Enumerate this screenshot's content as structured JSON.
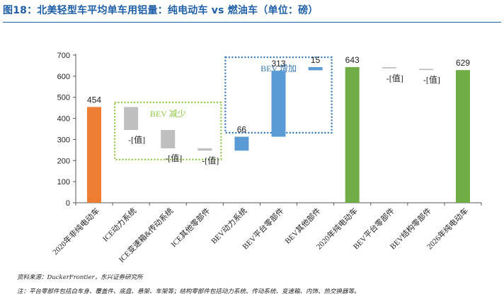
{
  "figure": {
    "title": "图18：北美轻型车平均单车用铝量：纯电动车 vs 燃油车（单位：磅）"
  },
  "chart_data": {
    "type": "bar",
    "subtype": "waterfall",
    "title": "",
    "xlabel": "",
    "ylabel": "",
    "ylim": [
      0,
      700
    ],
    "yticks": [
      0,
      100,
      200,
      300,
      400,
      500,
      600,
      700
    ],
    "grid": false,
    "legend": "none",
    "colors": {
      "total_orange": "#ed7d31",
      "total_green": "#70ad47",
      "decrease": "#bfbfbf",
      "increase": "#5b9bd5",
      "group_box": "#8dc63f",
      "group_box_blue": "#2e75b6"
    },
    "categories": [
      "2020年非纯电动车",
      "ICE动力系统",
      "ICE变速箱&传动系统",
      "ICE其他零部件",
      "BEV动力系统",
      "BEV平台零部件",
      "BEV其他部件",
      "2020年纯电动车",
      "BEV平台零部件",
      "BEV结构零部件",
      "2026年纯电动车"
    ],
    "bars": [
      {
        "kind": "total",
        "color": "total_orange",
        "base": 0,
        "top": 454,
        "label": "454"
      },
      {
        "kind": "decrease",
        "color": "decrease",
        "base": 345,
        "top": 454,
        "label": "-[值]"
      },
      {
        "kind": "decrease",
        "color": "decrease",
        "base": 258,
        "top": 345,
        "label": "-[值]"
      },
      {
        "kind": "decrease",
        "color": "decrease",
        "base": 247,
        "top": 258,
        "label": "-[值]"
      },
      {
        "kind": "increase",
        "color": "increase",
        "base": 247,
        "top": 313,
        "label": "66"
      },
      {
        "kind": "increase",
        "color": "increase",
        "base": 313,
        "top": 626,
        "label": "313"
      },
      {
        "kind": "increase",
        "color": "increase",
        "base": 628,
        "top": 643,
        "label": "15"
      },
      {
        "kind": "total",
        "color": "total_green",
        "base": 0,
        "top": 643,
        "label": "643"
      },
      {
        "kind": "decrease",
        "color": "decrease",
        "base": 637,
        "top": 643,
        "label": "-[值]"
      },
      {
        "kind": "decrease",
        "color": "decrease",
        "base": 629,
        "top": 635,
        "label": "-[值]"
      },
      {
        "kind": "total",
        "color": "total_green",
        "base": 0,
        "top": 629,
        "label": "629"
      }
    ],
    "annotations": [
      {
        "text": "BEV 减少"
      },
      {
        "text": "BEV 增加"
      }
    ]
  },
  "footer": {
    "source": "资料来源：DuckerFrontier，东兴证券研究所",
    "note": "注：平台零部件包括白车身、覆盖件、底盘、悬架、车架等；结构零部件包括动力系统、传动系统、变速箱、内饰、热交换器等。"
  }
}
